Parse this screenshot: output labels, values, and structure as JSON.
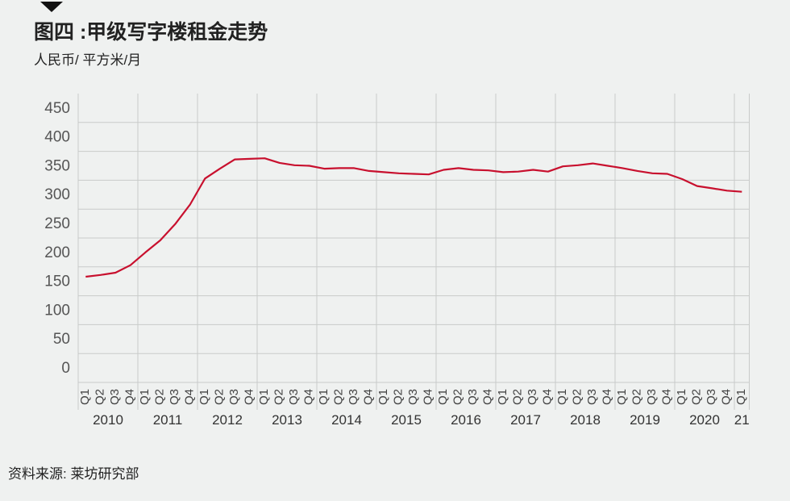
{
  "chart_data": {
    "type": "line",
    "title": "图四 :甲级写字楼租金走势",
    "subtitle": "人民币/ 平方米/月",
    "source": "资料来源: 莱坊研究部",
    "categories": [
      "Q1",
      "Q2",
      "Q3",
      "Q4",
      "Q1",
      "Q2",
      "Q3",
      "Q4",
      "Q1",
      "Q2",
      "Q3",
      "Q4",
      "Q1",
      "Q2",
      "Q3",
      "Q4",
      "Q1",
      "Q2",
      "Q3",
      "Q4",
      "Q1",
      "Q2",
      "Q3",
      "Q4",
      "Q1",
      "Q2",
      "Q3",
      "Q4",
      "Q1",
      "Q2",
      "Q3",
      "Q4",
      "Q1",
      "Q2",
      "Q3",
      "Q4",
      "Q1",
      "Q2",
      "Q3",
      "Q4",
      "Q1",
      "Q2",
      "Q3",
      "Q4",
      "Q1"
    ],
    "years": [
      "2010",
      "2011",
      "2012",
      "2013",
      "2014",
      "2015",
      "2016",
      "2017",
      "2018",
      "2019",
      "2020",
      "21"
    ],
    "series": [
      {
        "color": "#c8102e",
        "values": [
          183,
          186,
          190,
          203,
          225,
          246,
          274,
          308,
          353,
          370,
          386,
          387,
          388,
          380,
          376,
          375,
          370,
          371,
          371,
          366,
          364,
          362,
          361,
          360,
          368,
          371,
          368,
          367,
          364,
          365,
          368,
          365,
          374,
          376,
          379,
          375,
          371,
          366,
          362,
          361,
          352,
          340,
          336,
          332,
          330
        ]
      }
    ],
    "ylim": [
      0,
      500
    ],
    "yticks": [
      0,
      50,
      100,
      150,
      200,
      250,
      300,
      350,
      400,
      450
    ],
    "grid": true
  }
}
